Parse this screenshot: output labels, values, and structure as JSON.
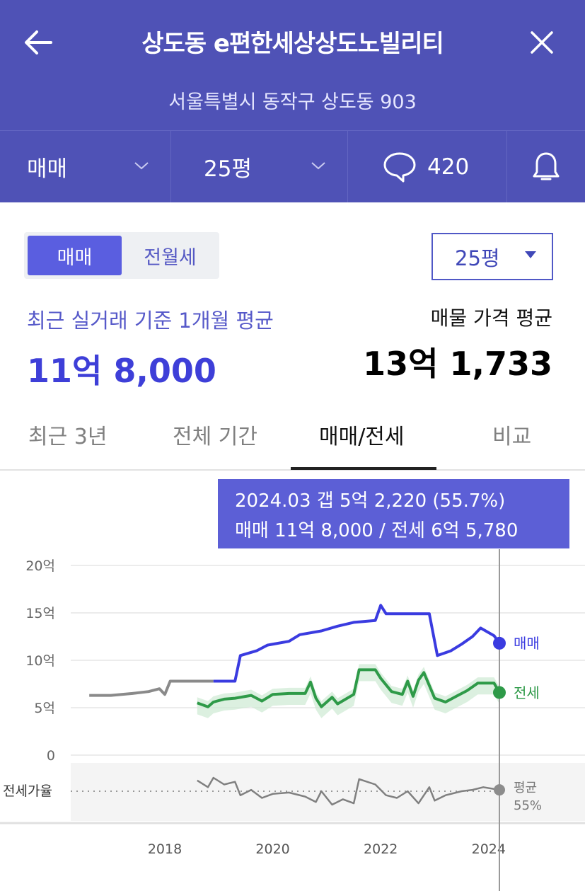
{
  "header": {
    "title": "상도동 e편한세상상도노빌리티",
    "address": "서울특별시 동작구 상도동 903"
  },
  "toolbar": {
    "trade_type": "매매",
    "size": "25평",
    "comment_count": "420"
  },
  "segment": {
    "active": "매매",
    "inactive": "전월세"
  },
  "size_dropdown": {
    "value": "25평"
  },
  "summary": {
    "avg_label": "최근 실거래 기준 1개월 평균",
    "avg_value": "11억 8,000",
    "listing_label": "매물 가격 평균",
    "listing_value": "13억 1,733"
  },
  "tabs": [
    {
      "label": "최근 3년"
    },
    {
      "label": "전체 기간"
    },
    {
      "label": "매매/전세"
    },
    {
      "label": "비교"
    }
  ],
  "tooltip": {
    "line1": "2024.03  갭 5억 2,220 (55.7%)",
    "line2": "매매 11억 8,000 / 전세 6억 5,780"
  },
  "colors": {
    "primary": "#4f52b6",
    "sale": "#3a3be0",
    "jeonse": "#2e9a48",
    "ratio": "#808080"
  },
  "chart_data": {
    "type": "line",
    "y_ticks": [
      "20억",
      "15억",
      "10억",
      "5억",
      "0"
    ],
    "x_ticks": [
      "2018",
      "2020",
      "2022",
      "2024"
    ],
    "ratio_label": "전세가율",
    "sale_label": "매매",
    "jeonse_label": "전세",
    "avg_label": "평균",
    "avg_value": "55%",
    "ylim": [
      0,
      20
    ],
    "sale_history": [
      [
        2016.6,
        6.3
      ],
      [
        2017.0,
        6.3
      ],
      [
        2017.4,
        6.5
      ],
      [
        2017.7,
        6.7
      ],
      [
        2017.9,
        7.0
      ],
      [
        2018.0,
        6.4
      ],
      [
        2018.1,
        7.8
      ],
      [
        2018.5,
        7.8
      ],
      [
        2018.9,
        7.8
      ]
    ],
    "sale": [
      [
        2018.9,
        7.8
      ],
      [
        2019.3,
        7.8
      ],
      [
        2019.4,
        10.5
      ],
      [
        2019.7,
        11.0
      ],
      [
        2019.9,
        11.6
      ],
      [
        2020.3,
        12.0
      ],
      [
        2020.5,
        12.7
      ],
      [
        2020.9,
        13.1
      ],
      [
        2021.2,
        13.6
      ],
      [
        2021.5,
        14.0
      ],
      [
        2021.9,
        14.2
      ],
      [
        2022.0,
        15.8
      ],
      [
        2022.1,
        14.9
      ],
      [
        2022.5,
        14.9
      ],
      [
        2022.9,
        14.9
      ],
      [
        2023.05,
        10.5
      ],
      [
        2023.3,
        11.0
      ],
      [
        2023.5,
        11.7
      ],
      [
        2023.7,
        12.5
      ],
      [
        2023.85,
        13.4
      ],
      [
        2024.1,
        12.6
      ],
      [
        2024.2,
        11.8
      ]
    ],
    "jeonse": [
      [
        2018.6,
        5.5
      ],
      [
        2018.8,
        5.1
      ],
      [
        2018.9,
        5.6
      ],
      [
        2019.1,
        5.9
      ],
      [
        2019.3,
        6.0
      ],
      [
        2019.6,
        6.3
      ],
      [
        2019.8,
        5.7
      ],
      [
        2020.0,
        6.4
      ],
      [
        2020.3,
        6.5
      ],
      [
        2020.6,
        6.5
      ],
      [
        2020.7,
        7.7
      ],
      [
        2020.8,
        6.0
      ],
      [
        2020.9,
        5.1
      ],
      [
        2021.1,
        6.1
      ],
      [
        2021.2,
        5.4
      ],
      [
        2021.5,
        6.4
      ],
      [
        2021.6,
        9.0
      ],
      [
        2021.9,
        9.0
      ],
      [
        2022.0,
        8.1
      ],
      [
        2022.2,
        6.7
      ],
      [
        2022.4,
        6.4
      ],
      [
        2022.5,
        7.8
      ],
      [
        2022.6,
        6.2
      ],
      [
        2022.7,
        7.9
      ],
      [
        2022.8,
        8.7
      ],
      [
        2023.0,
        6.0
      ],
      [
        2023.2,
        5.6
      ],
      [
        2023.4,
        6.2
      ],
      [
        2023.6,
        6.8
      ],
      [
        2023.8,
        7.6
      ],
      [
        2024.1,
        7.6
      ],
      [
        2024.2,
        6.6
      ]
    ],
    "ratio_pct": [
      [
        2018.6,
        63
      ],
      [
        2018.8,
        58
      ],
      [
        2018.9,
        65
      ],
      [
        2019.1,
        60
      ],
      [
        2019.3,
        62
      ],
      [
        2019.4,
        52
      ],
      [
        2019.6,
        56
      ],
      [
        2019.8,
        50
      ],
      [
        2020.0,
        53
      ],
      [
        2020.3,
        54
      ],
      [
        2020.6,
        51
      ],
      [
        2020.8,
        47
      ],
      [
        2020.9,
        55
      ],
      [
        2021.1,
        45
      ],
      [
        2021.3,
        49
      ],
      [
        2021.5,
        46
      ],
      [
        2021.6,
        64
      ],
      [
        2021.9,
        60
      ],
      [
        2022.1,
        52
      ],
      [
        2022.3,
        50
      ],
      [
        2022.5,
        55
      ],
      [
        2022.7,
        46
      ],
      [
        2022.9,
        58
      ],
      [
        2023.0,
        48
      ],
      [
        2023.2,
        52
      ],
      [
        2023.5,
        55
      ],
      [
        2023.7,
        56
      ],
      [
        2023.9,
        58
      ],
      [
        2024.2,
        56
      ]
    ]
  }
}
